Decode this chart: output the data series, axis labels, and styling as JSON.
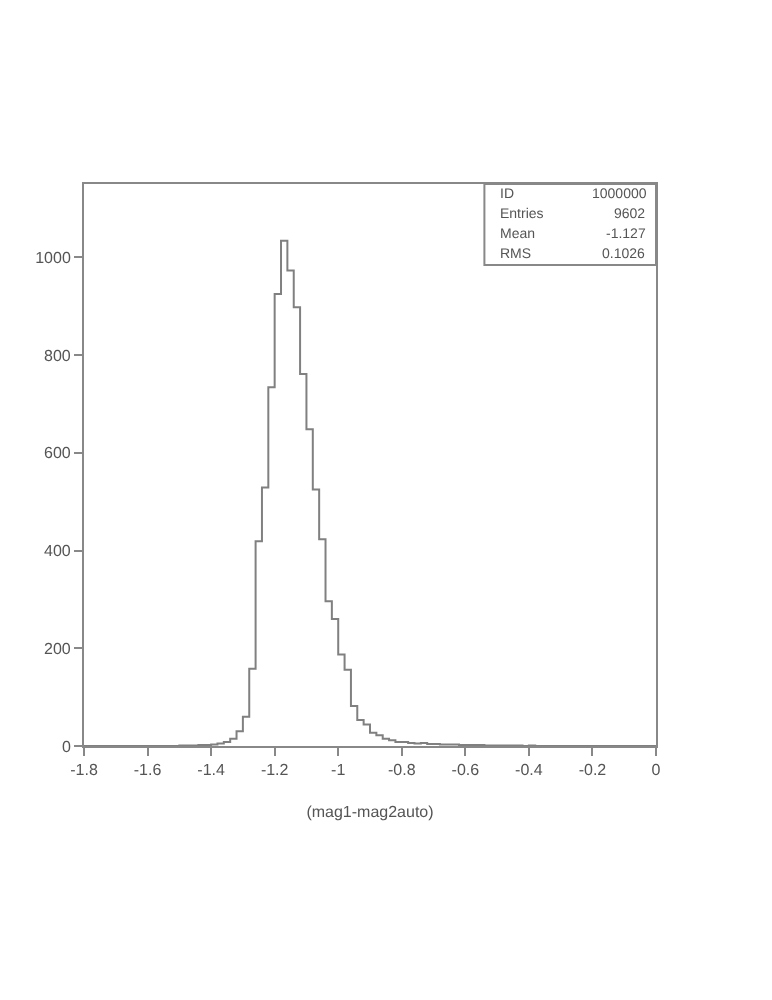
{
  "chart_data": {
    "type": "histogram",
    "xlabel": "(mag1-mag2auto)",
    "bins": [
      -1.8,
      -1.78,
      -1.76,
      -1.74,
      -1.72,
      -1.7,
      -1.68,
      -1.66,
      -1.64,
      -1.62,
      -1.6,
      -1.58,
      -1.56,
      -1.54,
      -1.52,
      -1.5,
      -1.48,
      -1.46,
      -1.44,
      -1.42,
      -1.4,
      -1.38,
      -1.36,
      -1.34,
      -1.32,
      -1.3,
      -1.28,
      -1.26,
      -1.24,
      -1.22,
      -1.2,
      -1.18,
      -1.16,
      -1.14,
      -1.12,
      -1.1,
      -1.08,
      -1.06,
      -1.04,
      -1.02,
      -1.0,
      -0.98,
      -0.96,
      -0.94,
      -0.92,
      -0.9,
      -0.88,
      -0.86,
      -0.84,
      -0.82,
      -0.8,
      -0.78,
      -0.76,
      -0.74,
      -0.72,
      -0.7,
      -0.68,
      -0.66,
      -0.64,
      -0.62,
      -0.6,
      -0.58,
      -0.56,
      -0.54,
      -0.52,
      -0.5,
      -0.48,
      -0.46,
      -0.44,
      -0.42,
      -0.4,
      -0.38,
      -0.36,
      -0.34,
      -0.32,
      -0.3,
      -0.28,
      -0.26,
      -0.24,
      -0.22,
      -0.2,
      -0.18,
      -0.16,
      -0.14,
      -0.12,
      -0.1,
      -0.08,
      -0.06,
      -0.04,
      -0.02,
      0.0
    ],
    "values": [
      0,
      0,
      0,
      0,
      0,
      0,
      0,
      0,
      0,
      0,
      0,
      0,
      0,
      0,
      0,
      1,
      1,
      1,
      2,
      2,
      3,
      5,
      8,
      15,
      30,
      60,
      158,
      419,
      529,
      734,
      925,
      1034,
      973,
      898,
      761,
      648,
      525,
      423,
      296,
      260,
      187,
      156,
      82,
      53,
      44,
      27,
      22,
      15,
      12,
      8,
      8,
      6,
      5,
      6,
      4,
      4,
      3,
      3,
      3,
      2,
      2,
      2,
      2,
      1,
      1,
      1,
      1,
      1,
      1,
      0,
      1,
      0,
      0,
      0,
      0,
      0,
      0,
      0,
      0,
      0,
      0,
      0,
      0,
      0,
      0,
      0,
      0,
      0,
      0,
      0
    ],
    "color": "#808080",
    "xlim": [
      -1.8,
      0
    ],
    "ylim": [
      0,
      1150
    ],
    "xticks": [
      -1.8,
      -1.6,
      -1.4,
      -1.2,
      -1,
      -0.8,
      -0.6,
      -0.4,
      -0.2,
      0
    ],
    "yticks": [
      0,
      200,
      400,
      600,
      800,
      1000
    ],
    "annotations": [
      "ID",
      "1000000",
      "Entries",
      "9602",
      "Mean",
      "-1.127",
      "RMS",
      "0.1026"
    ]
  }
}
